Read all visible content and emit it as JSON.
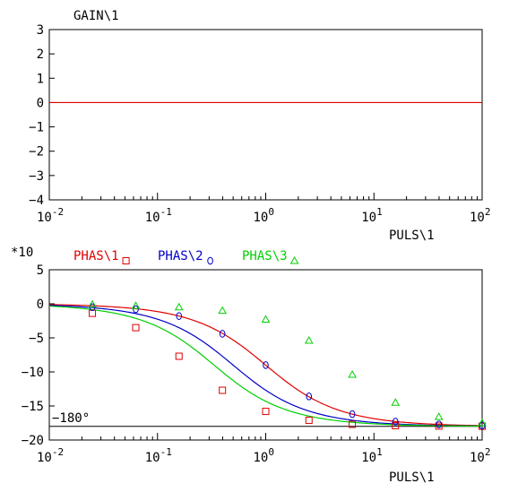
{
  "colors": {
    "axis": "#000000",
    "red": "#e00000",
    "blue": "#0000c8",
    "green": "#00d000"
  },
  "chart_data": [
    {
      "type": "line",
      "title": "GAIN\\1",
      "xlabel": "PULS\\1",
      "x_scale": "log",
      "xlim": [
        0.01,
        100
      ],
      "ylim": [
        -4,
        3
      ],
      "x_tick_exponents": [
        "-2",
        "-1",
        "0",
        "1",
        "2"
      ],
      "y_ticks": [
        "3",
        "2",
        "1",
        "0",
        "−1",
        "−2",
        "−3",
        "−4"
      ],
      "series": [
        {
          "name": "GAIN\\1",
          "x": [
            0.01,
            100
          ],
          "y": [
            0,
            0
          ]
        }
      ]
    },
    {
      "type": "line",
      "xlabel": "PULS\\1",
      "x_scale": "log",
      "xlim": [
        0.01,
        100
      ],
      "ylim": [
        -20,
        5
      ],
      "y_multiplier": "*10",
      "x_tick_exponents": [
        "-2",
        "-1",
        "0",
        "1",
        "2"
      ],
      "y_ticks": [
        "5",
        "0",
        "−5",
        "−10",
        "−15",
        "−20"
      ],
      "reference_line": {
        "label": "−180°",
        "y": -18
      },
      "series": [
        {
          "name": "PHAS\\1",
          "marker": "square",
          "T": 1,
          "x": [
            0.025,
            0.063,
            0.158,
            0.398,
            1.0,
            2.51,
            6.31,
            15.8,
            39.8,
            100
          ],
          "y": [
            -1.4,
            -3.5,
            -7.7,
            -12.7,
            -15.8,
            -17.1,
            -17.7,
            -17.9,
            -17.95,
            -17.98
          ]
        },
        {
          "name": "PHAS\\2",
          "marker": "circle",
          "T": 2,
          "x": [
            0.025,
            0.063,
            0.158,
            0.398,
            1.0,
            2.51,
            6.31,
            15.8,
            39.8,
            100
          ],
          "y": [
            -0.5,
            -0.8,
            -1.8,
            -4.4,
            -9.0,
            -13.6,
            -16.2,
            -17.3,
            -17.7,
            -17.9
          ]
        },
        {
          "name": "PHAS\\3",
          "marker": "triangle",
          "T": 3,
          "x": [
            0.025,
            0.063,
            0.158,
            0.398,
            1.0,
            2.51,
            6.31,
            15.8,
            39.8,
            100
          ],
          "y": [
            -0.1,
            -0.3,
            -0.5,
            -1.0,
            -2.3,
            -5.4,
            -10.4,
            -14.5,
            -16.6,
            -17.5
          ]
        }
      ]
    }
  ]
}
